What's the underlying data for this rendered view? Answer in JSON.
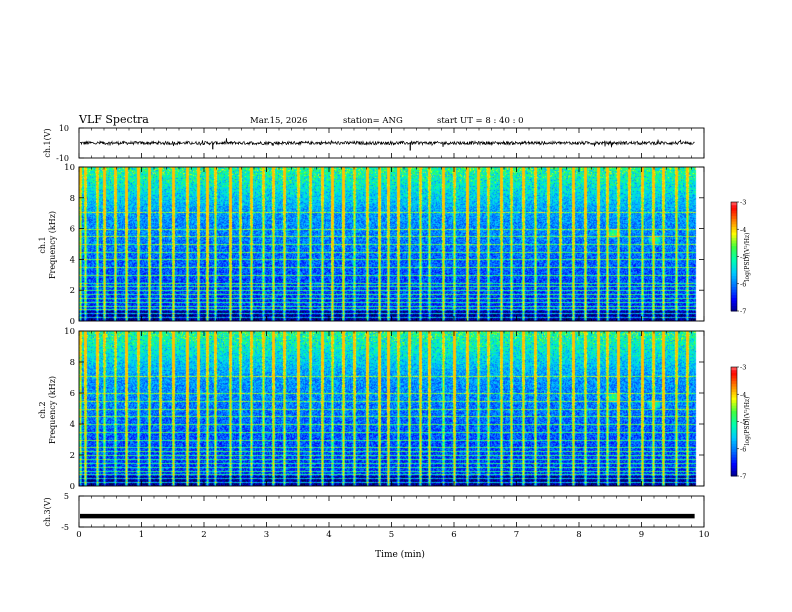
{
  "header": {
    "title": "VLF Spectra",
    "date": "Mar.15, 2026",
    "station": "station= ANG",
    "start": "start  UT =   8 : 40 : 0"
  },
  "chart_data": {
    "type": "heatmap",
    "title": "VLF Spectra",
    "xlabel": "Time  (min)",
    "xlim": [
      0,
      10
    ],
    "x_ticks": [
      "0",
      "1",
      "2",
      "3",
      "4",
      "5",
      "6",
      "7",
      "8",
      "9",
      "10"
    ],
    "panels": [
      {
        "name": "ch1-waveform",
        "ylabel": "ch.1(V)",
        "ylim": [
          -10,
          10
        ],
        "y_tick_labels": [
          "10",
          "-10"
        ],
        "trace_level": 0,
        "trace_noise": 1
      },
      {
        "name": "ch1-spectrogram",
        "ylabel_line1": "ch.1",
        "ylabel_line2": "Frequency  (kHz)",
        "ylim": [
          0,
          10
        ],
        "y_ticks": [
          "0",
          "2",
          "4",
          "6",
          "8",
          "10"
        ],
        "data_end_min": 9.85,
        "colorbar": {
          "label": "log(PSD)(V²/Hz)",
          "range": [
            -7,
            -3
          ],
          "ticks": [
            "-3",
            "-4",
            "-5",
            "-6",
            "-7"
          ]
        }
      },
      {
        "name": "ch2-spectrogram",
        "ylabel_line1": "ch.2",
        "ylabel_line2": "Frequency  (kHz)",
        "ylim": [
          0,
          10
        ],
        "y_ticks": [
          "0",
          "2",
          "4",
          "6",
          "8",
          "10"
        ],
        "data_end_min": 9.85,
        "colorbar": {
          "label": "log(PSD)(V²/Hz)",
          "range": [
            -7,
            -3
          ],
          "ticks": [
            "-3",
            "-4",
            "-5",
            "-6",
            "-7"
          ]
        }
      },
      {
        "name": "ch3-waveform",
        "ylabel": "ch.3(V)",
        "ylim": [
          -5,
          5
        ],
        "y_tick_labels": [
          "5",
          "-5"
        ],
        "trace_level": -1.5
      }
    ],
    "colormap": [
      "#000033",
      "#00007f",
      "#0000ff",
      "#0070ff",
      "#00c8ff",
      "#00ffb0",
      "#40ff40",
      "#ffff00",
      "#ff8000",
      "#ff0000",
      "#ffffff"
    ],
    "line_harmonics_khz": [
      0.25,
      0.5,
      0.75,
      1.0,
      1.25,
      1.5,
      1.75,
      2.0,
      2.25,
      2.5,
      3.0,
      3.5,
      4.0,
      4.5,
      5.0,
      5.5,
      6.0,
      7.1
    ],
    "sferic_times_min": [
      0.02,
      0.1,
      0.28,
      0.4,
      0.58,
      0.75,
      0.95,
      1.12,
      1.3,
      1.5,
      1.72,
      1.9,
      2.05,
      2.18,
      2.42,
      2.58,
      2.75,
      2.95,
      3.1,
      3.28,
      3.5,
      3.7,
      3.88,
      4.05,
      4.22,
      4.4,
      4.6,
      4.8,
      4.95,
      5.1,
      5.28,
      5.45,
      5.6,
      5.82,
      6.0,
      6.2,
      6.38,
      6.55,
      6.75,
      6.92,
      7.1,
      7.3,
      7.5,
      7.7,
      7.9,
      8.1,
      8.3,
      8.45,
      8.62,
      8.8,
      9.0,
      9.18,
      9.35,
      9.55,
      9.72
    ]
  }
}
